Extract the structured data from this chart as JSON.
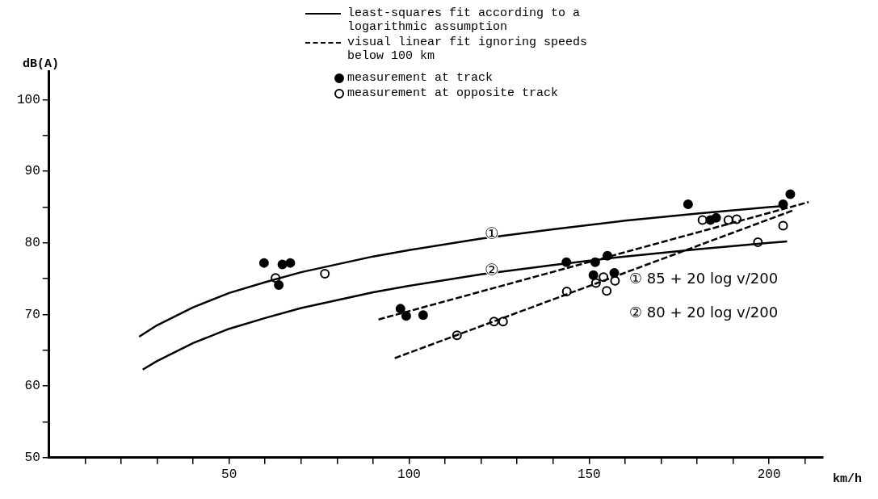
{
  "chart_data": {
    "type": "scatter",
    "xlabel": "km/h",
    "ylabel": "dB(A)",
    "xlim": [
      0,
      215
    ],
    "ylim": [
      50,
      104
    ],
    "xticks": [
      {
        "value": 10,
        "label": null
      },
      {
        "value": 20,
        "label": null
      },
      {
        "value": 30,
        "label": null
      },
      {
        "value": 40,
        "label": null
      },
      50,
      {
        "value": 60,
        "label": null
      },
      {
        "value": 70,
        "label": null
      },
      {
        "value": 80,
        "label": null
      },
      {
        "value": 90,
        "label": null
      },
      100,
      {
        "value": 110,
        "label": null
      },
      {
        "value": 120,
        "label": null
      },
      {
        "value": 130,
        "label": null
      },
      {
        "value": 140,
        "label": null
      },
      150,
      {
        "value": 160,
        "label": null
      },
      {
        "value": 170,
        "label": null
      },
      {
        "value": 180,
        "label": null
      },
      {
        "value": 190,
        "label": null
      },
      200,
      {
        "value": 210,
        "label": null
      }
    ],
    "yticks": [
      50,
      {
        "value": 55,
        "label": null
      },
      60,
      {
        "value": 65,
        "label": null
      },
      70,
      {
        "value": 75,
        "label": null
      },
      80,
      {
        "value": 85,
        "label": null
      },
      90,
      {
        "value": 95,
        "label": null
      },
      100
    ],
    "grid": false,
    "legend": "top",
    "series": [
      {
        "name": "least-squares fit according to a logarithmic assumption",
        "type": "line",
        "line_style": "solid",
        "marker": "none",
        "color": "#000000",
        "x": [
          25,
          30,
          40,
          50,
          60,
          70,
          80,
          90,
          100,
          120,
          140,
          160,
          180,
          200,
          205
        ],
        "values": [
          66.9,
          68.5,
          71.0,
          73.0,
          74.5,
          75.9,
          77.0,
          78.1,
          79.0,
          80.6,
          81.9,
          83.1,
          84.1,
          85.0,
          85.2
        ]
      },
      {
        "type": "line",
        "line_style": "solid",
        "marker": "none",
        "color": "#000000",
        "x": [
          26,
          30,
          40,
          50,
          60,
          70,
          80,
          90,
          100,
          120,
          140,
          160,
          180,
          200,
          205
        ],
        "values": [
          62.3,
          63.5,
          66.0,
          68.0,
          69.5,
          70.9,
          72.0,
          73.1,
          74.0,
          75.6,
          76.9,
          78.1,
          79.1,
          80.0,
          80.2
        ]
      },
      {
        "name": "visual linear fit ignoring speeds below 100 km",
        "type": "line",
        "line_style": "dashed",
        "marker": "none",
        "color": "#000000",
        "x": [
          91.5,
          211
        ],
        "values": [
          69.3,
          85.7
        ]
      },
      {
        "type": "line",
        "line_style": "dashed",
        "marker": "none",
        "color": "#000000",
        "x": [
          96,
          207
        ],
        "values": [
          63.9,
          84.6
        ]
      },
      {
        "name": "measurement at track",
        "marker": "circle",
        "color": "#000000",
        "x": [
          59.7,
          63.8,
          64.8,
          67,
          97.6,
          99.2,
          103.9,
          143.7,
          151.7,
          155.1,
          151.2,
          157,
          177.5,
          183.7,
          185.3,
          203.9,
          205.9
        ],
        "values": [
          77.2,
          74.1,
          77.0,
          77.2,
          70.8,
          69.8,
          69.9,
          77.3,
          77.3,
          78.2,
          75.5,
          75.8,
          85.4,
          83.2,
          83.5,
          85.4,
          86.8
        ]
      },
      {
        "name": "measurement at opposite track",
        "marker": "circle",
        "color": "#ffffff",
        "x": [
          62.9,
          76.6,
          113.3,
          123.6,
          126.1,
          143.8,
          151.9,
          154,
          154.9,
          157.2,
          181.5,
          188.7,
          191,
          196.9,
          203.9
        ],
        "values": [
          75.1,
          75.7,
          67.1,
          69.0,
          69.0,
          73.2,
          74.4,
          75.2,
          73.3,
          74.7,
          83.2,
          83.2,
          83.3,
          80.1,
          82.4
        ]
      }
    ],
    "annotations": [
      {
        "text": "①",
        "x": 123,
        "y": 81.2
      },
      {
        "text": "②",
        "x": 123,
        "y": 76.2
      },
      "① 85 + 20 log v/200",
      "② 80 + 20 log v/200"
    ]
  }
}
